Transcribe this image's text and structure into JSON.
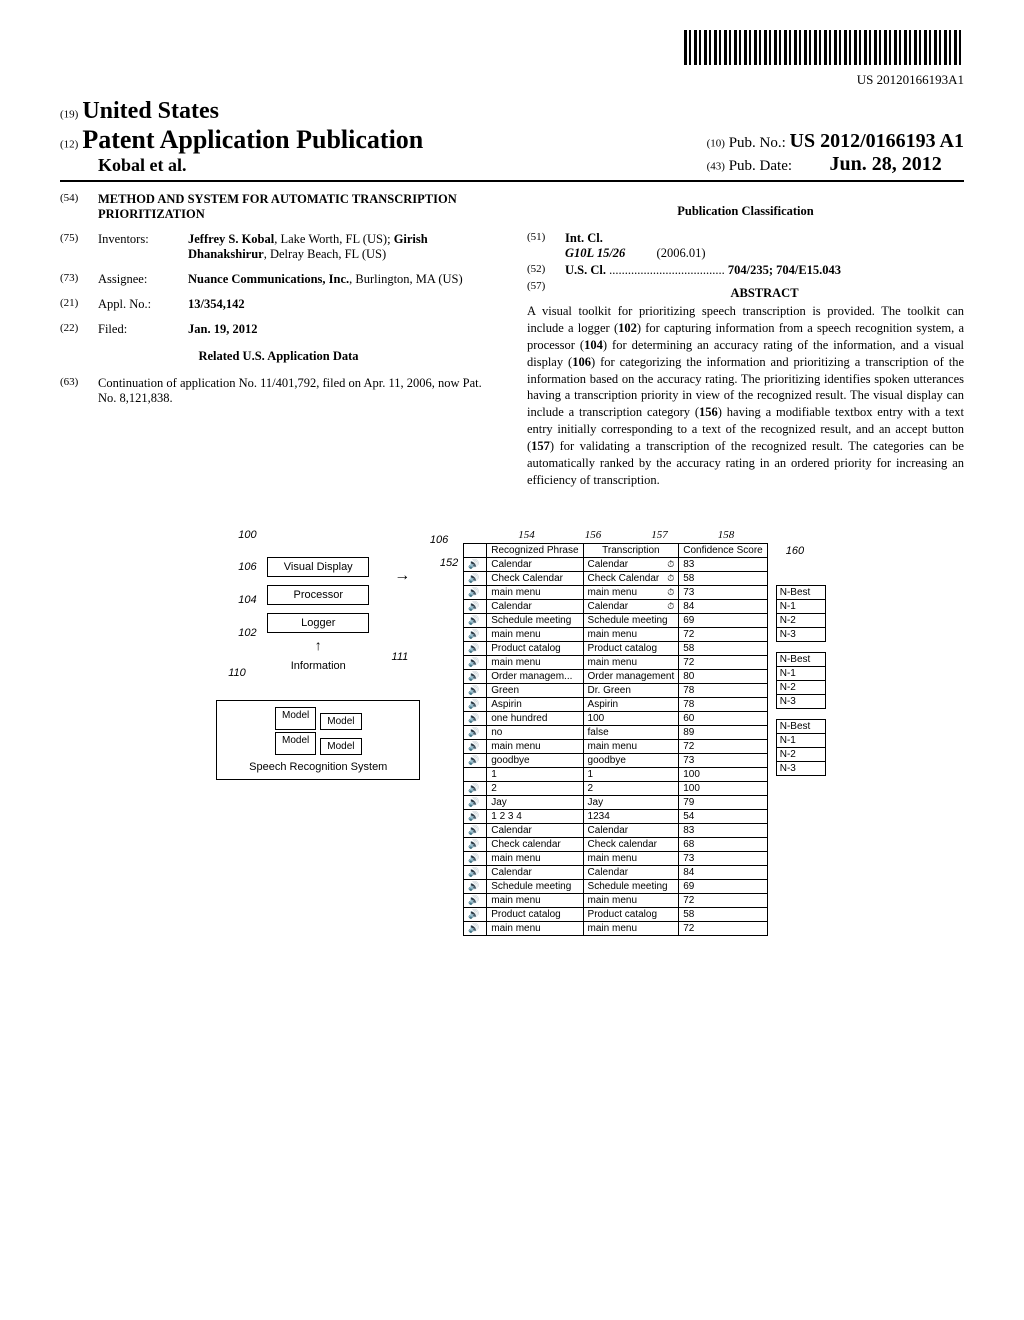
{
  "barcode_number": "US 20120166193A1",
  "header": {
    "super19": "(19)",
    "country": "United States",
    "super12": "(12)",
    "pub_type": "Patent Application Publication",
    "authors": "Kobal et al.",
    "super10": "(10)",
    "pubno_label": "Pub. No.:",
    "pubno": "US 2012/0166193 A1",
    "super43": "(43)",
    "pubdate_label": "Pub. Date:",
    "pubdate": "Jun. 28, 2012"
  },
  "left_col": {
    "code54": "(54)",
    "title": "METHOD AND SYSTEM FOR AUTOMATIC TRANSCRIPTION PRIORITIZATION",
    "code75": "(75)",
    "inventors_label": "Inventors:",
    "inventors_body": "Jeffrey S. Kobal, Lake Worth, FL (US); Girish Dhanakshirur, Delray Beach, FL (US)",
    "code73": "(73)",
    "assignee_label": "Assignee:",
    "assignee_body": "Nuance Communications, Inc., Burlington, MA (US)",
    "code21": "(21)",
    "applno_label": "Appl. No.:",
    "applno_body": "13/354,142",
    "code22": "(22)",
    "filed_label": "Filed:",
    "filed_body": "Jan. 19, 2012",
    "related_title": "Related U.S. Application Data",
    "code63": "(63)",
    "related_body": "Continuation of application No. 11/401,792, filed on Apr. 11, 2006, now Pat. No. 8,121,838."
  },
  "right_col": {
    "pub_class_title": "Publication Classification",
    "code51": "(51)",
    "intcl_label": "Int. Cl.",
    "intcl_code": "G10L 15/26",
    "intcl_year": "(2006.01)",
    "code52": "(52)",
    "uscl_label": "U.S. Cl.",
    "uscl_dots": ".....................................",
    "uscl_body": "704/235; 704/E15.043",
    "code57": "(57)",
    "abstract_title": "ABSTRACT",
    "abstract_body": "A visual toolkit for prioritizing speech transcription is provided. The toolkit can include a logger (102) for capturing information from a speech recognition system, a processor (104) for determining an accuracy rating of the information, and a visual display (106) for categorizing the information and prioritizing a transcription of the information based on the accuracy rating. The prioritizing identifies spoken utterances having a transcription priority in view of the recognized result. The visual display can include a transcription category (156) having a modifiable textbox entry with a text entry initially corresponding to a text of the recognized result, and an accept button (157) for validating a transcription of the recognized result. The categories can be automatically ranked by the accuracy rating in an ordered priority for increasing an efficiency of transcription."
  },
  "diagram": {
    "ref100": "100",
    "ref106a": "106",
    "ref106b": "106",
    "ref104": "104",
    "ref102": "102",
    "ref110": "110",
    "ref111": "111",
    "ref152": "152",
    "vd": "Visual Display",
    "proc": "Processor",
    "logger": "Logger",
    "info": "Information",
    "model": "Model",
    "srs": "Speech Recognition System"
  },
  "table": {
    "callouts": {
      "c154": "154",
      "c156": "156",
      "c157": "157",
      "c158": "158",
      "c160": "160"
    },
    "headers": {
      "col1": "Recognized Phrase",
      "col2": "Transcription",
      "col3": "Confidence Score"
    },
    "rows": [
      {
        "r": "Calendar",
        "t": "Calendar",
        "c": "83",
        "clock": true
      },
      {
        "r": "Check Calendar",
        "t": "Check Calendar",
        "c": "58",
        "clock": true
      },
      {
        "r": "main menu",
        "t": "main menu",
        "c": "73",
        "clock": true
      },
      {
        "r": "Calendar",
        "t": "Calendar",
        "c": "84",
        "clock": true
      },
      {
        "r": "Schedule meeting",
        "t": "Schedule meeting",
        "c": "69"
      },
      {
        "r": "main menu",
        "t": "main menu",
        "c": "72"
      },
      {
        "r": "Product catalog",
        "t": "Product catalog",
        "c": "58"
      },
      {
        "r": "main menu",
        "t": "main menu",
        "c": "72"
      },
      {
        "r": "Order managem...",
        "t": "Order management",
        "c": "80"
      },
      {
        "r": "Green",
        "t": "Dr. Green",
        "c": "78"
      },
      {
        "r": "Aspirin",
        "t": "Aspirin",
        "c": "78"
      },
      {
        "r": "one hundred",
        "t": "100",
        "c": "60"
      },
      {
        "r": "no",
        "t": "false",
        "c": "89"
      },
      {
        "r": "main menu",
        "t": "main menu",
        "c": "72"
      },
      {
        "r": "goodbye",
        "t": "goodbye",
        "c": "73"
      },
      {
        "r": "1",
        "t": "1",
        "c": "100",
        "nosp": true
      },
      {
        "r": "2",
        "t": "2",
        "c": "100"
      },
      {
        "r": "Jay",
        "t": "Jay",
        "c": "79"
      },
      {
        "r": "1 2 3 4",
        "t": "1234",
        "c": "54"
      },
      {
        "r": "Calendar",
        "t": "Calendar",
        "c": "83"
      },
      {
        "r": "Check calendar",
        "t": "Check calendar",
        "c": "68"
      },
      {
        "r": "main menu",
        "t": "main menu",
        "c": "73"
      },
      {
        "r": "Calendar",
        "t": "Calendar",
        "c": "84"
      },
      {
        "r": "Schedule meeting",
        "t": "Schedule meeting",
        "c": "69"
      },
      {
        "r": "main menu",
        "t": "main menu",
        "c": "72"
      },
      {
        "r": "Product catalog",
        "t": "Product catalog",
        "c": "58"
      },
      {
        "r": "main menu",
        "t": "main menu",
        "c": "72"
      }
    ],
    "nbest": {
      "h": "N-Best",
      "r1": "N-1",
      "r2": "N-2",
      "r3": "N-3"
    }
  }
}
